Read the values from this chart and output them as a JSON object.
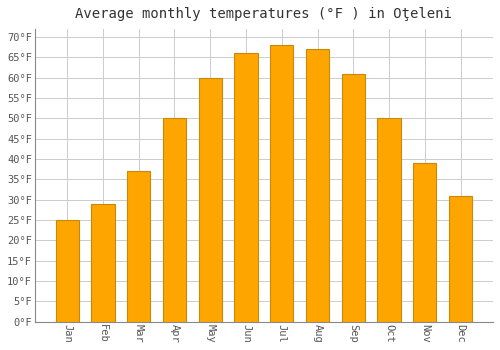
{
  "title": "Average monthly temperatures (°F ) in Oţeleni",
  "months": [
    "Jan",
    "Feb",
    "Mar",
    "Apr",
    "May",
    "Jun",
    "Jul",
    "Aug",
    "Sep",
    "Oct",
    "Nov",
    "Dec"
  ],
  "values": [
    25,
    29,
    37,
    50,
    60,
    66,
    68,
    67,
    61,
    50,
    39,
    31
  ],
  "bar_color": "#FFA500",
  "bar_edge_color": "#C8880A",
  "background_color": "#FFFFFF",
  "plot_bg_color": "#FFFFFF",
  "grid_color": "#CCCCCC",
  "ylim": [
    0,
    72
  ],
  "yticks": [
    0,
    5,
    10,
    15,
    20,
    25,
    30,
    35,
    40,
    45,
    50,
    55,
    60,
    65,
    70
  ],
  "title_fontsize": 10,
  "tick_fontsize": 7.5,
  "font_family": "monospace"
}
